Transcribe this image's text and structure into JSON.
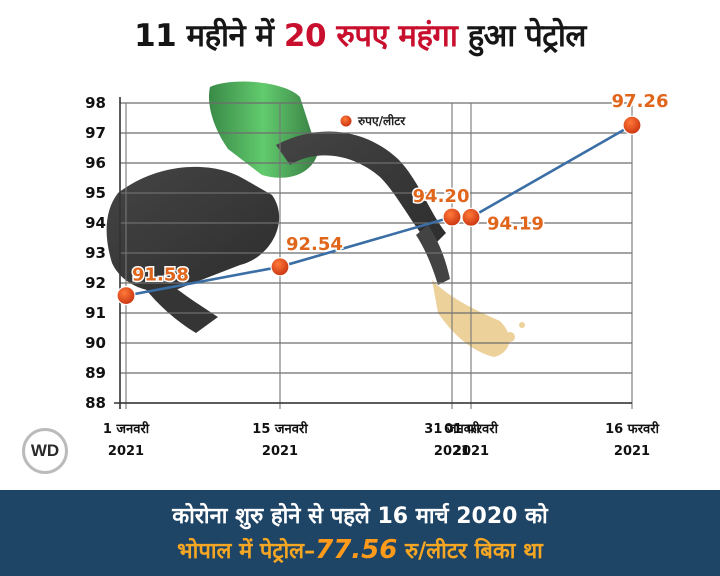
{
  "title": {
    "part1": "11 महीने में",
    "part2": "20 रुपए महंगा",
    "part3": "हुआ पेट्रोल"
  },
  "chart_data": {
    "type": "line",
    "title": "11 महीने में 20 रुपए महंगा हुआ पेट्रोल",
    "categories": [
      [
        "1 जनवरी",
        "2021"
      ],
      [
        "15 जनवरी",
        "2021"
      ],
      [
        "31 जनवरी",
        "2021"
      ],
      [
        "01 फरवरी",
        "2021"
      ],
      [
        "16 फरवरी",
        "2021"
      ]
    ],
    "series": [
      {
        "name": "रुपए/लीटर",
        "values": [
          91.58,
          92.54,
          94.2,
          94.19,
          97.26
        ]
      }
    ],
    "data_labels": [
      "91.58",
      "92.54",
      "94.20",
      "94.19",
      "97.26"
    ],
    "ylim": [
      88,
      98
    ],
    "yticks": [
      88,
      89,
      90,
      91,
      92,
      93,
      94,
      95,
      96,
      97,
      98
    ],
    "grid": true,
    "legend_position": "top",
    "colors": {
      "line": "#3a6ea5",
      "marker": "#e8501e",
      "label": "#e0661c",
      "grid": "#6e6e6e"
    }
  },
  "footer": {
    "line1": "कोरोना शुरु होने से पहले 16 मार्च 2020 को",
    "line2_prefix": "भोपाल में पेट्रोल–",
    "line2_value": "77.56",
    "line2_suffix": " रु/लीटर बिका था"
  },
  "logo": {
    "text": "WD"
  }
}
